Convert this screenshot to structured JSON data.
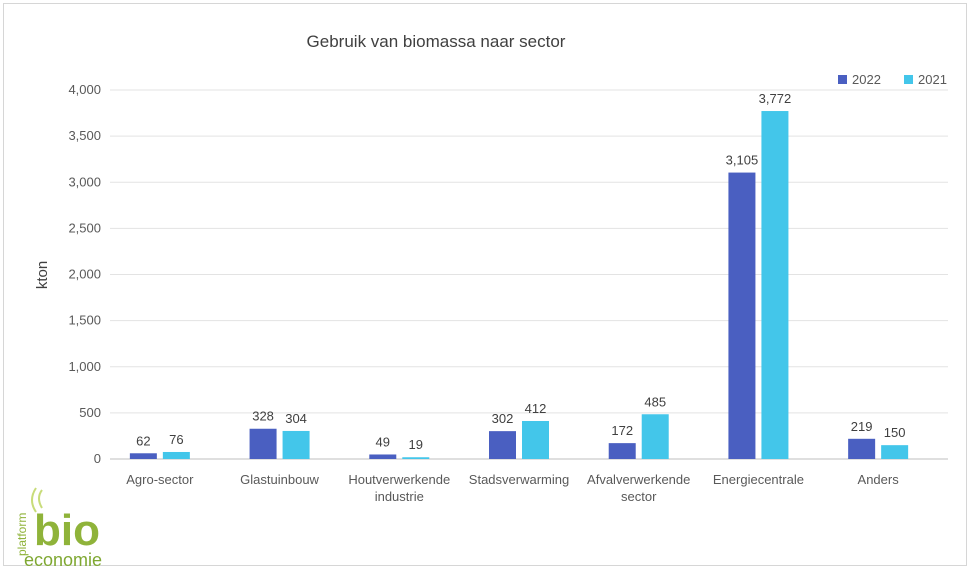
{
  "chart_data": {
    "type": "bar",
    "title": "Gebruik van biomassa naar sector",
    "xlabel": "",
    "ylabel": "kton",
    "ylim": [
      0,
      4000
    ],
    "yticks": [
      "0",
      "500",
      "1,000",
      "1,500",
      "2,000",
      "2,500",
      "3,000",
      "3,500",
      "4,000"
    ],
    "grid": true,
    "legend_position": "top-right",
    "categories": [
      [
        "Agro-sector"
      ],
      [
        "Glastuinbouw"
      ],
      [
        "Houtverwerkende",
        "industrie"
      ],
      [
        "Stadsverwarming"
      ],
      [
        "Afvalverwerkende",
        "sector"
      ],
      [
        "Energiecentrale"
      ],
      [
        "Anders"
      ]
    ],
    "series": [
      {
        "name": "2022",
        "color": "#4a5fc1",
        "values": [
          62,
          328,
          49,
          302,
          172,
          3105,
          219
        ]
      },
      {
        "name": "2021",
        "color": "#43c6ea",
        "values": [
          76,
          304,
          19,
          412,
          485,
          3772,
          150
        ]
      }
    ]
  },
  "logo": {
    "small": "platform",
    "big": "bio",
    "bottom": "economie"
  }
}
